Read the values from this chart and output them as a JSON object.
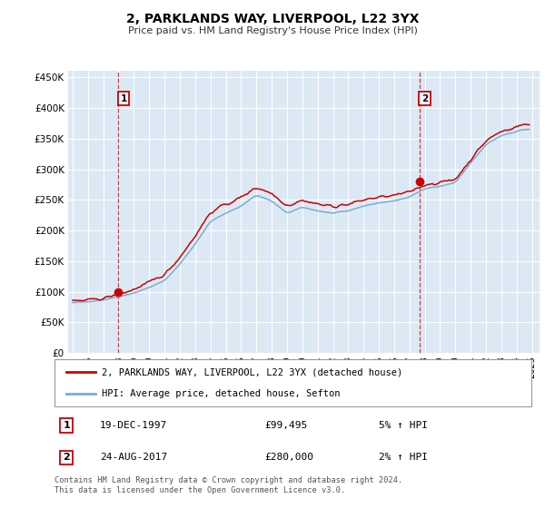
{
  "title": "2, PARKLANDS WAY, LIVERPOOL, L22 3YX",
  "subtitle": "Price paid vs. HM Land Registry's House Price Index (HPI)",
  "ylabel_values": [
    0,
    50000,
    100000,
    150000,
    200000,
    250000,
    300000,
    350000,
    400000,
    450000
  ],
  "x_start": 1994.7,
  "x_end": 2025.5,
  "ylim": [
    0,
    460000
  ],
  "sale1_date": 1997.97,
  "sale1_price": 99495,
  "sale2_date": 2017.65,
  "sale2_price": 280000,
  "sale1_label": "1",
  "sale2_label": "2",
  "sale1_info": "19-DEC-1997",
  "sale1_amount": "£99,495",
  "sale1_hpi": "5% ↑ HPI",
  "sale2_info": "24-AUG-2017",
  "sale2_amount": "£280,000",
  "sale2_hpi": "2% ↑ HPI",
  "legend_label1": "2, PARKLANDS WAY, LIVERPOOL, L22 3YX (detached house)",
  "legend_label2": "HPI: Average price, detached house, Sefton",
  "red_color": "#cc0000",
  "blue_color": "#7aadd4",
  "plot_bg": "#dce9f5",
  "footer_text": "Contains HM Land Registry data © Crown copyright and database right 2024.\nThis data is licensed under the Open Government Licence v3.0.",
  "x_ticks": [
    1995,
    1996,
    1997,
    1998,
    1999,
    2000,
    2001,
    2002,
    2003,
    2004,
    2005,
    2006,
    2007,
    2008,
    2009,
    2010,
    2011,
    2012,
    2013,
    2014,
    2015,
    2016,
    2017,
    2018,
    2019,
    2020,
    2021,
    2022,
    2023,
    2024,
    2025
  ],
  "hpi_anchors": [
    [
      1995.0,
      82000
    ],
    [
      1996.0,
      84000
    ],
    [
      1997.0,
      87000
    ],
    [
      1998.0,
      92000
    ],
    [
      1999.0,
      98000
    ],
    [
      2000.0,
      107000
    ],
    [
      2001.0,
      118000
    ],
    [
      2002.0,
      145000
    ],
    [
      2003.0,
      178000
    ],
    [
      2004.0,
      215000
    ],
    [
      2005.0,
      228000
    ],
    [
      2006.0,
      240000
    ],
    [
      2007.0,
      258000
    ],
    [
      2008.0,
      248000
    ],
    [
      2009.0,
      228000
    ],
    [
      2010.0,
      238000
    ],
    [
      2011.0,
      232000
    ],
    [
      2012.0,
      228000
    ],
    [
      2013.0,
      232000
    ],
    [
      2014.0,
      240000
    ],
    [
      2015.0,
      245000
    ],
    [
      2016.0,
      248000
    ],
    [
      2017.0,
      255000
    ],
    [
      2018.0,
      268000
    ],
    [
      2019.0,
      272000
    ],
    [
      2020.0,
      278000
    ],
    [
      2021.0,
      310000
    ],
    [
      2022.0,
      340000
    ],
    [
      2023.0,
      355000
    ],
    [
      2024.5,
      365000
    ]
  ],
  "red_offset_anchors": [
    [
      1995.0,
      2000
    ],
    [
      1997.5,
      3000
    ],
    [
      2000.0,
      8000
    ],
    [
      2004.0,
      15000
    ],
    [
      2009.0,
      12000
    ],
    [
      2014.0,
      10000
    ],
    [
      2017.0,
      8000
    ],
    [
      2020.0,
      5000
    ],
    [
      2024.5,
      8000
    ]
  ]
}
